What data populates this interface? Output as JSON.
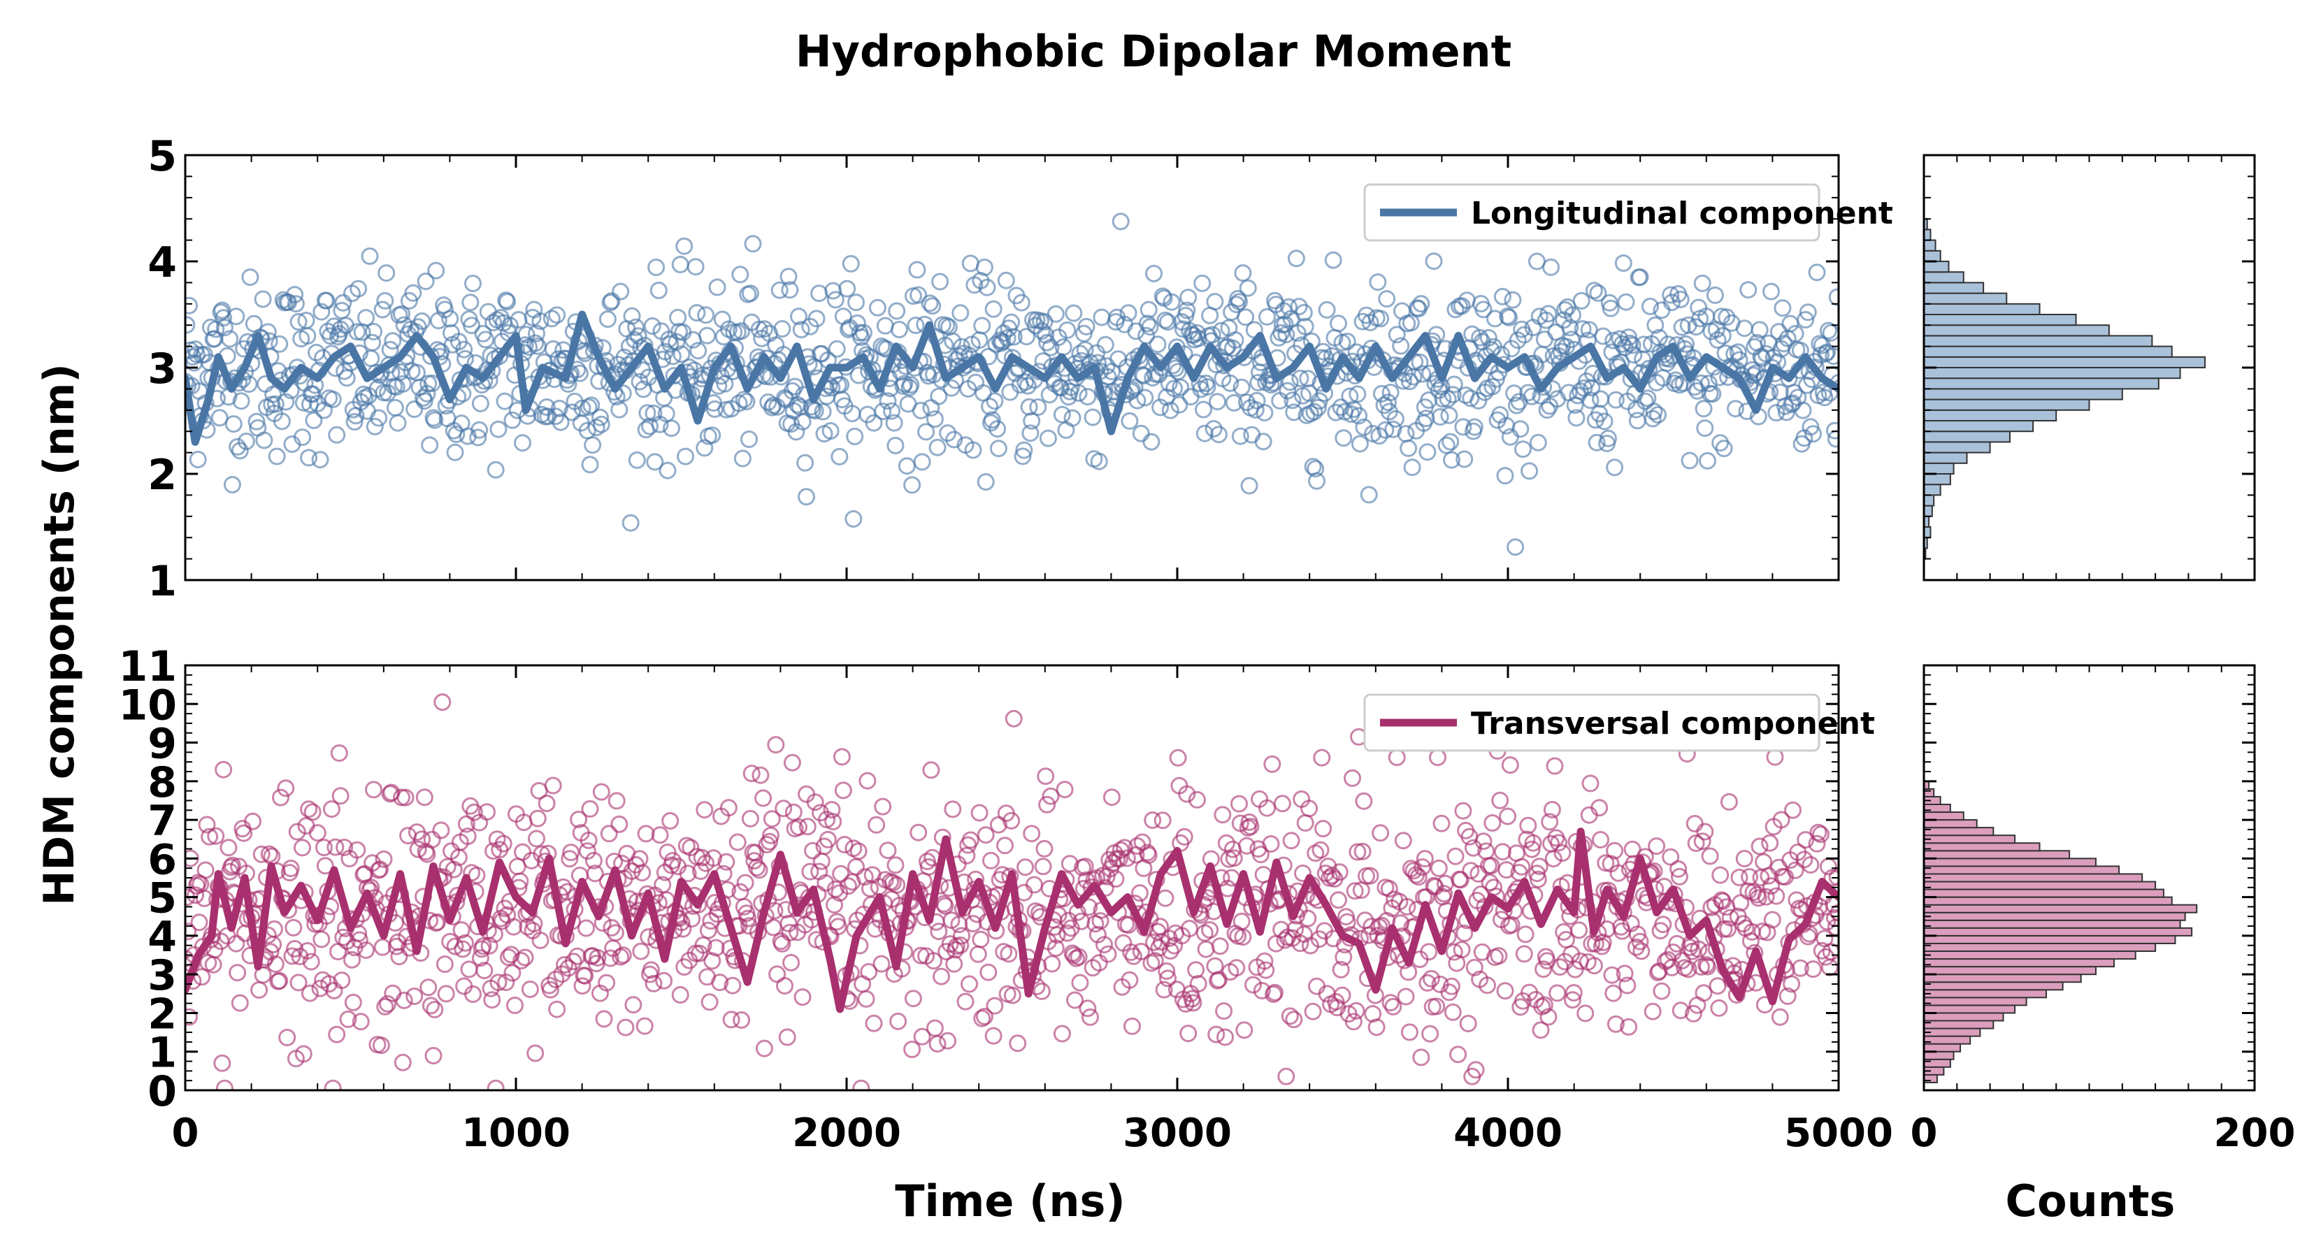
{
  "chart_data": {
    "title": "Hydrophobic Dipolar Moment",
    "ylabel": "HDM components (nm)",
    "xlabel": "Time (ns)",
    "hist_xlabel": "Counts",
    "colors": {
      "longitudinal": "#4a76a6",
      "longitudinal_fill": "#a9c1d9",
      "transversal": "#a8306e",
      "transversal_fill": "#dc9ebd"
    },
    "panels": [
      {
        "name": "longitudinal",
        "type": "scatter+line",
        "legend": "Longitudinal component",
        "legend_position": "top-right",
        "xlim": [
          0,
          5000
        ],
        "ylim": [
          1,
          5
        ],
        "yticks": [
          1,
          2,
          3,
          4,
          5
        ],
        "xticks": [
          0,
          1000,
          2000,
          3000,
          4000,
          5000
        ],
        "scatter_mean": 3.0,
        "scatter_sd": 0.42,
        "line_points": [
          [
            0,
            2.9
          ],
          [
            30,
            2.3
          ],
          [
            70,
            2.7
          ],
          [
            100,
            3.1
          ],
          [
            140,
            2.8
          ],
          [
            180,
            3.0
          ],
          [
            220,
            3.3
          ],
          [
            260,
            2.9
          ],
          [
            300,
            2.8
          ],
          [
            350,
            3.0
          ],
          [
            400,
            2.9
          ],
          [
            450,
            3.1
          ],
          [
            500,
            3.2
          ],
          [
            550,
            2.9
          ],
          [
            600,
            3.0
          ],
          [
            650,
            3.1
          ],
          [
            700,
            3.3
          ],
          [
            750,
            3.1
          ],
          [
            800,
            2.7
          ],
          [
            850,
            3.0
          ],
          [
            900,
            2.9
          ],
          [
            950,
            3.1
          ],
          [
            1000,
            3.3
          ],
          [
            1030,
            2.6
          ],
          [
            1080,
            3.0
          ],
          [
            1150,
            2.9
          ],
          [
            1200,
            3.5
          ],
          [
            1250,
            3.1
          ],
          [
            1300,
            2.8
          ],
          [
            1350,
            3.0
          ],
          [
            1400,
            3.2
          ],
          [
            1450,
            2.8
          ],
          [
            1500,
            3.0
          ],
          [
            1550,
            2.5
          ],
          [
            1600,
            3.0
          ],
          [
            1650,
            3.2
          ],
          [
            1700,
            2.8
          ],
          [
            1750,
            3.1
          ],
          [
            1800,
            2.9
          ],
          [
            1850,
            3.2
          ],
          [
            1900,
            2.7
          ],
          [
            1950,
            3.0
          ],
          [
            2000,
            3.0
          ],
          [
            2050,
            3.1
          ],
          [
            2100,
            2.8
          ],
          [
            2150,
            3.2
          ],
          [
            2200,
            3.0
          ],
          [
            2250,
            3.4
          ],
          [
            2300,
            2.9
          ],
          [
            2350,
            3.0
          ],
          [
            2400,
            3.1
          ],
          [
            2450,
            2.8
          ],
          [
            2500,
            3.1
          ],
          [
            2550,
            3.0
          ],
          [
            2600,
            2.9
          ],
          [
            2650,
            3.1
          ],
          [
            2700,
            2.9
          ],
          [
            2750,
            3.0
          ],
          [
            2800,
            2.4
          ],
          [
            2850,
            2.9
          ],
          [
            2900,
            3.2
          ],
          [
            2950,
            3.0
          ],
          [
            3000,
            3.2
          ],
          [
            3050,
            2.9
          ],
          [
            3100,
            3.2
          ],
          [
            3150,
            3.0
          ],
          [
            3200,
            3.1
          ],
          [
            3250,
            3.3
          ],
          [
            3300,
            2.9
          ],
          [
            3350,
            3.0
          ],
          [
            3400,
            3.2
          ],
          [
            3450,
            2.8
          ],
          [
            3500,
            3.1
          ],
          [
            3550,
            2.9
          ],
          [
            3600,
            3.2
          ],
          [
            3650,
            2.9
          ],
          [
            3700,
            3.1
          ],
          [
            3750,
            3.3
          ],
          [
            3800,
            2.9
          ],
          [
            3850,
            3.3
          ],
          [
            3900,
            2.9
          ],
          [
            3950,
            3.1
          ],
          [
            4000,
            3.0
          ],
          [
            4050,
            3.1
          ],
          [
            4100,
            2.8
          ],
          [
            4150,
            3.0
          ],
          [
            4200,
            3.1
          ],
          [
            4250,
            3.2
          ],
          [
            4300,
            2.9
          ],
          [
            4350,
            3.0
          ],
          [
            4400,
            2.8
          ],
          [
            4450,
            3.1
          ],
          [
            4500,
            3.2
          ],
          [
            4550,
            2.9
          ],
          [
            4600,
            3.1
          ],
          [
            4650,
            3.0
          ],
          [
            4700,
            2.9
          ],
          [
            4750,
            2.6
          ],
          [
            4800,
            3.0
          ],
          [
            4850,
            2.9
          ],
          [
            4900,
            3.1
          ],
          [
            4950,
            2.9
          ],
          [
            5000,
            2.8
          ]
        ],
        "hist_bins": [
          [
            1.2,
            1.3,
            1
          ],
          [
            1.3,
            1.4,
            2
          ],
          [
            1.4,
            1.5,
            4
          ],
          [
            1.5,
            1.6,
            3
          ],
          [
            1.6,
            1.7,
            5
          ],
          [
            1.7,
            1.8,
            6
          ],
          [
            1.8,
            1.9,
            10
          ],
          [
            1.9,
            2.0,
            16
          ],
          [
            2.0,
            2.1,
            18
          ],
          [
            2.1,
            2.2,
            26
          ],
          [
            2.2,
            2.3,
            40
          ],
          [
            2.3,
            2.4,
            52
          ],
          [
            2.4,
            2.5,
            66
          ],
          [
            2.5,
            2.6,
            80
          ],
          [
            2.6,
            2.7,
            100
          ],
          [
            2.7,
            2.8,
            120
          ],
          [
            2.8,
            2.9,
            142
          ],
          [
            2.9,
            3.0,
            155
          ],
          [
            3.0,
            3.1,
            170
          ],
          [
            3.1,
            3.2,
            150
          ],
          [
            3.2,
            3.3,
            138
          ],
          [
            3.3,
            3.4,
            112
          ],
          [
            3.4,
            3.5,
            92
          ],
          [
            3.5,
            3.6,
            70
          ],
          [
            3.6,
            3.7,
            50
          ],
          [
            3.7,
            3.8,
            36
          ],
          [
            3.8,
            3.9,
            24
          ],
          [
            3.9,
            4.0,
            15
          ],
          [
            4.0,
            4.1,
            10
          ],
          [
            4.1,
            4.2,
            7
          ],
          [
            4.2,
            4.3,
            4
          ],
          [
            4.3,
            4.4,
            2
          ]
        ],
        "hist_xlim": [
          0,
          200
        ],
        "hist_xticks": [
          0,
          200
        ]
      },
      {
        "name": "transversal",
        "type": "scatter+line",
        "legend": "Transversal component",
        "legend_position": "top-right",
        "xlim": [
          0,
          5000
        ],
        "ylim": [
          0,
          11
        ],
        "yticks": [
          0,
          1,
          2,
          3,
          4,
          5,
          6,
          7,
          8,
          9,
          10,
          11
        ],
        "xticks": [
          0,
          1000,
          2000,
          3000,
          4000,
          5000
        ],
        "scatter_mean": 4.6,
        "scatter_sd": 1.6,
        "line_points": [
          [
            0,
            2.6
          ],
          [
            40,
            3.5
          ],
          [
            80,
            4.0
          ],
          [
            100,
            5.6
          ],
          [
            140,
            4.2
          ],
          [
            180,
            5.5
          ],
          [
            220,
            3.2
          ],
          [
            260,
            5.8
          ],
          [
            300,
            4.6
          ],
          [
            350,
            5.3
          ],
          [
            400,
            4.4
          ],
          [
            450,
            5.7
          ],
          [
            500,
            4.2
          ],
          [
            550,
            5.1
          ],
          [
            600,
            4.0
          ],
          [
            650,
            5.6
          ],
          [
            700,
            3.6
          ],
          [
            750,
            5.8
          ],
          [
            800,
            4.4
          ],
          [
            850,
            5.5
          ],
          [
            900,
            4.1
          ],
          [
            950,
            5.9
          ],
          [
            1000,
            5.0
          ],
          [
            1050,
            4.6
          ],
          [
            1100,
            6.0
          ],
          [
            1150,
            3.8
          ],
          [
            1200,
            5.4
          ],
          [
            1250,
            4.5
          ],
          [
            1300,
            5.7
          ],
          [
            1350,
            4.0
          ],
          [
            1400,
            5.1
          ],
          [
            1450,
            3.4
          ],
          [
            1500,
            5.4
          ],
          [
            1550,
            4.8
          ],
          [
            1600,
            5.6
          ],
          [
            1650,
            4.2
          ],
          [
            1700,
            2.8
          ],
          [
            1750,
            4.6
          ],
          [
            1800,
            6.1
          ],
          [
            1850,
            4.6
          ],
          [
            1900,
            5.2
          ],
          [
            1950,
            3.4
          ],
          [
            1980,
            2.1
          ],
          [
            2030,
            4.0
          ],
          [
            2100,
            5.0
          ],
          [
            2150,
            3.2
          ],
          [
            2200,
            5.6
          ],
          [
            2250,
            4.4
          ],
          [
            2300,
            6.5
          ],
          [
            2350,
            4.6
          ],
          [
            2400,
            5.4
          ],
          [
            2450,
            4.2
          ],
          [
            2500,
            5.6
          ],
          [
            2550,
            2.5
          ],
          [
            2600,
            4.2
          ],
          [
            2650,
            5.6
          ],
          [
            2700,
            4.8
          ],
          [
            2750,
            5.3
          ],
          [
            2800,
            4.6
          ],
          [
            2850,
            5.0
          ],
          [
            2900,
            4.1
          ],
          [
            2950,
            5.6
          ],
          [
            3000,
            6.2
          ],
          [
            3050,
            4.6
          ],
          [
            3100,
            5.8
          ],
          [
            3150,
            4.3
          ],
          [
            3200,
            5.6
          ],
          [
            3250,
            4.1
          ],
          [
            3300,
            5.9
          ],
          [
            3350,
            4.5
          ],
          [
            3400,
            5.5
          ],
          [
            3450,
            4.8
          ],
          [
            3500,
            4.0
          ],
          [
            3550,
            3.8
          ],
          [
            3600,
            2.6
          ],
          [
            3650,
            4.2
          ],
          [
            3700,
            3.3
          ],
          [
            3750,
            4.8
          ],
          [
            3800,
            3.6
          ],
          [
            3850,
            5.1
          ],
          [
            3900,
            4.2
          ],
          [
            3950,
            5.0
          ],
          [
            4000,
            4.7
          ],
          [
            4050,
            5.4
          ],
          [
            4100,
            4.3
          ],
          [
            4150,
            5.2
          ],
          [
            4200,
            4.6
          ],
          [
            4220,
            6.7
          ],
          [
            4260,
            4.1
          ],
          [
            4300,
            5.2
          ],
          [
            4350,
            4.5
          ],
          [
            4400,
            6.0
          ],
          [
            4450,
            4.6
          ],
          [
            4500,
            5.2
          ],
          [
            4550,
            4.0
          ],
          [
            4600,
            4.4
          ],
          [
            4650,
            3.1
          ],
          [
            4700,
            2.4
          ],
          [
            4750,
            3.6
          ],
          [
            4800,
            2.3
          ],
          [
            4850,
            3.9
          ],
          [
            4900,
            4.3
          ],
          [
            4950,
            5.4
          ],
          [
            5000,
            5.0
          ]
        ],
        "hist_bins": [
          [
            0.2,
            0.4,
            8
          ],
          [
            0.4,
            0.6,
            12
          ],
          [
            0.6,
            0.8,
            16
          ],
          [
            0.8,
            1.0,
            18
          ],
          [
            1.0,
            1.2,
            22
          ],
          [
            1.2,
            1.4,
            28
          ],
          [
            1.4,
            1.6,
            34
          ],
          [
            1.6,
            1.8,
            42
          ],
          [
            1.8,
            2.0,
            48
          ],
          [
            2.0,
            2.2,
            55
          ],
          [
            2.2,
            2.4,
            62
          ],
          [
            2.4,
            2.6,
            74
          ],
          [
            2.6,
            2.8,
            84
          ],
          [
            2.8,
            3.0,
            95
          ],
          [
            3.0,
            3.2,
            104
          ],
          [
            3.2,
            3.4,
            115
          ],
          [
            3.4,
            3.6,
            128
          ],
          [
            3.6,
            3.8,
            140
          ],
          [
            3.8,
            4.0,
            152
          ],
          [
            4.0,
            4.2,
            162
          ],
          [
            4.2,
            4.4,
            155
          ],
          [
            4.4,
            4.6,
            158
          ],
          [
            4.6,
            4.8,
            165
          ],
          [
            4.8,
            5.0,
            150
          ],
          [
            5.0,
            5.2,
            145
          ],
          [
            5.2,
            5.4,
            140
          ],
          [
            5.4,
            5.6,
            132
          ],
          [
            5.6,
            5.8,
            118
          ],
          [
            5.8,
            6.0,
            104
          ],
          [
            6.0,
            6.2,
            88
          ],
          [
            6.2,
            6.4,
            70
          ],
          [
            6.4,
            6.6,
            55
          ],
          [
            6.6,
            6.8,
            42
          ],
          [
            6.8,
            7.0,
            32
          ],
          [
            7.0,
            7.2,
            24
          ],
          [
            7.2,
            7.4,
            16
          ],
          [
            7.4,
            7.6,
            10
          ],
          [
            7.6,
            7.8,
            6
          ],
          [
            7.8,
            8.0,
            3
          ]
        ],
        "hist_xlim": [
          0,
          200
        ],
        "hist_xticks": [
          0,
          200
        ]
      }
    ]
  }
}
